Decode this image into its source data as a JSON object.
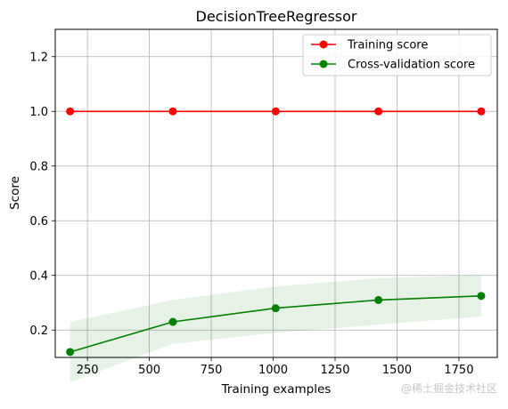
{
  "chart_data": {
    "type": "line",
    "title": "DecisionTreeRegressor",
    "xlabel": "Training examples",
    "ylabel": "Score",
    "xlim": [
      120,
      1905
    ],
    "ylim": [
      0.1,
      1.3
    ],
    "xticks": [
      250,
      500,
      750,
      1000,
      1250,
      1500,
      1750
    ],
    "yticks": [
      0.2,
      0.4,
      0.6,
      0.8,
      1.0,
      1.2
    ],
    "ytick_labels": [
      "0.2",
      "0.4",
      "0.6",
      "0.8",
      "1.0",
      "1.2"
    ],
    "grid": true,
    "legend_position": "top-right",
    "x": [
      180,
      595,
      1010,
      1425,
      1840
    ],
    "series": [
      {
        "name": "Training score",
        "color": "#ff0000",
        "values": [
          1.0,
          1.0,
          1.0,
          1.0,
          1.0
        ],
        "band_lower": [
          1.0,
          1.0,
          1.0,
          1.0,
          1.0
        ],
        "band_upper": [
          1.0,
          1.0,
          1.0,
          1.0,
          1.0
        ]
      },
      {
        "name": "Cross-validation score",
        "color": "#008000",
        "values": [
          0.12,
          0.23,
          0.28,
          0.31,
          0.325
        ],
        "band_lower": [
          0.01,
          0.15,
          0.19,
          0.22,
          0.25
        ],
        "band_upper": [
          0.23,
          0.31,
          0.36,
          0.39,
          0.4
        ]
      }
    ]
  },
  "watermark": "@稀土掘金技术社区"
}
